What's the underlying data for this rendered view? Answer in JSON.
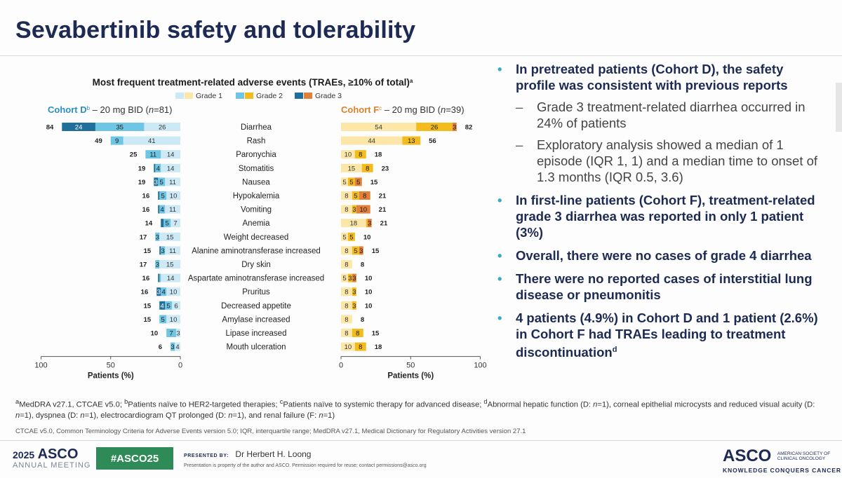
{
  "title": "Sevabertinib safety and tolerability",
  "chart_data": {
    "type": "bar",
    "title": "Most frequent treatment-related adverse events (TRAEs, ≥10% of total)",
    "title_sup": "a",
    "legend": [
      "Grade 1",
      "Grade 2",
      "Grade 3"
    ],
    "colors_left": {
      "grade1": "#cde9f5",
      "grade2": "#6ec6e4",
      "grade3": "#1e6f99"
    },
    "colors_right": {
      "grade1": "#fce7a9",
      "grade2": "#f3bb1c",
      "grade3": "#e2803a"
    },
    "legend_colors": {
      "grade1a": "#cde9f5",
      "grade1b": "#fce7a9",
      "grade2a": "#6ec6e4",
      "grade2b": "#f3bb1c",
      "grade3a": "#1e6f99",
      "grade3b": "#e2803a"
    },
    "cohortD": {
      "name": "Cohort D",
      "sup": "b",
      "dose": " – 20 mg BID (",
      "n": "n",
      "neq": "=81)",
      "color": "#2a8fbf"
    },
    "cohortF": {
      "name": "Cohort F",
      "sup": "c",
      "dose": " – 20 mg BID (",
      "n": "n",
      "neq": "=39)",
      "color": "#d9822b"
    },
    "categories": [
      "Diarrhea",
      "Rash",
      "Paronychia",
      "Stomatitis",
      "Nausea",
      "Hypokalemia",
      "Vomiting",
      "Anemia",
      "Weight decreased",
      "Alanine aminotransferase increased",
      "Dry skin",
      "Aspartate aminotransferase increased",
      "Pruritus",
      "Decreased appetite",
      "Amylase increased",
      "Lipase increased",
      "Mouth ulceration"
    ],
    "D": {
      "grade1": [
        26,
        41,
        14,
        14,
        11,
        10,
        11,
        7,
        15,
        11,
        15,
        14,
        10,
        6,
        10,
        3,
        4
      ],
      "grade2": [
        35,
        9,
        11,
        4,
        5,
        5,
        4,
        5,
        3,
        3,
        3,
        1,
        4,
        5,
        5,
        7,
        3
      ],
      "grade3": [
        24,
        0,
        0,
        1,
        3,
        1,
        1,
        2,
        0,
        1,
        0,
        1,
        3,
        4,
        0,
        0,
        0
      ],
      "grade1_labels": [
        "26",
        "41",
        "14",
        "14",
        "11",
        "10",
        "11",
        "7",
        "15",
        "11",
        "15",
        "14",
        "10",
        "6",
        "10",
        "3",
        "4"
      ],
      "grade2_labels": [
        "35",
        "9",
        "11",
        "4",
        "5",
        "5",
        "4",
        "5",
        "3",
        "3",
        "3",
        "",
        "4",
        "5",
        "5",
        "7",
        "3"
      ],
      "grade3_labels": [
        "24",
        "",
        "",
        "",
        "3",
        "",
        "",
        "",
        "",
        "",
        "",
        "",
        "3",
        "4",
        "",
        "",
        ""
      ],
      "totals": [
        "84",
        "49",
        "25",
        "19",
        "19",
        "16",
        "16",
        "14",
        "17",
        "15",
        "17",
        "16",
        "16",
        "15",
        "15",
        "10",
        "6"
      ]
    },
    "F": {
      "grade1": [
        54,
        44,
        10,
        15,
        5,
        8,
        8,
        18,
        5,
        8,
        8,
        5,
        8,
        8,
        8,
        8,
        10
      ],
      "grade2": [
        26,
        13,
        8,
        8,
        5,
        5,
        3,
        1,
        5,
        5,
        0,
        3,
        3,
        3,
        0,
        8,
        8
      ],
      "grade3": [
        3,
        0,
        0,
        0,
        5,
        8,
        10,
        3,
        0,
        3,
        0,
        3,
        0,
        0,
        0,
        0,
        0
      ],
      "grade1_labels": [
        "54",
        "44",
        "10",
        "15",
        "5",
        "8",
        "8",
        "18",
        "5",
        "8",
        "8",
        "5",
        "8",
        "8",
        "8",
        "8",
        "10"
      ],
      "grade2_labels": [
        "26",
        "13",
        "8",
        "8",
        "5",
        "5",
        "3",
        "",
        "5",
        "5",
        "",
        "3",
        "3",
        "3",
        "",
        "8",
        "8"
      ],
      "grade3_labels": [
        "3",
        "",
        "",
        "",
        "5",
        "8",
        "10",
        "3",
        "",
        "3",
        "",
        "3",
        "",
        "",
        "",
        "",
        ""
      ],
      "totals": [
        "82",
        "56",
        "18",
        "23",
        "15",
        "21",
        "21",
        "21",
        "10",
        "15",
        "8",
        "10",
        "10",
        "10",
        "8",
        "15",
        "18"
      ]
    },
    "xlabel": "Patients (%)",
    "xticks_left": [
      "100",
      "50",
      "0"
    ],
    "xticks_right": [
      "0",
      "50",
      "100"
    ],
    "xlim": [
      0,
      100
    ]
  },
  "bullets": [
    {
      "text": "In pretreated patients (Cohort D), the safety profile was consistent with previous reports",
      "subs": [
        "Grade 3 treatment-related diarrhea occurred in 24% of patients",
        "Exploratory analysis showed a median of 1 episode (IQR 1, 1) and a median time to onset of 1.3 months (IQR 0.5, 3.6)"
      ]
    },
    {
      "text": "In first-line patients (Cohort F), treatment-related grade 3 diarrhea was reported in only 1 patient (3%)",
      "subs": []
    },
    {
      "text": "Overall, there were no cases of grade 4 diarrhea",
      "subs": []
    },
    {
      "text": "There were no reported cases of interstitial lung disease or pneumonitis",
      "subs": []
    },
    {
      "text": "4 patients (4.9%) in Cohort D and 1 patient (2.6%) in Cohort F had TRAEs leading to treatment discontinuation",
      "sup": "d",
      "subs": []
    }
  ],
  "bullet_marker": "•",
  "sub_marker": "–",
  "footnotes": {
    "a_sup": "a",
    "a": "MedDRA v27.1, CTCAE v5.0; ",
    "b_sup": "b",
    "b": "Patients naïve to HER2-targeted therapies; ",
    "c_sup": "c",
    "c": "Patients naïve to systemic therapy for advanced disease; ",
    "d_sup": "d",
    "d1": "Abnormal hepatic function (D: ",
    "n": "n",
    "eq1": "=1), corneal epithelial microcysts and reduced visual acuity (D: ",
    "eq2": "=1), dyspnea (D: ",
    "eq3": "=1), electrocardiogram QT prolonged (D: ",
    "eq4": "=1), and renal failure (F: ",
    "eq5": "=1)"
  },
  "abbreviations": "CTCAE v5.0, Common Terminology Criteria for Adverse Events version 5.0; IQR, interquartile range; MedDRA v27.1, Medical Dictionary for Regulatory Activities version 27.1",
  "footer": {
    "year": "2025",
    "asco": "ASCO",
    "annual": "ANNUAL MEETING",
    "hashtag": "#ASCO25",
    "presented_label": "PRESENTED BY:",
    "presenter": "Dr Herbert H. Loong",
    "permission": "Presentation is property of the author and ASCO. Permission required for reuse; contact permissions@asco.org",
    "asco_right": "ASCO",
    "society": [
      "AMERICAN SOCIETY OF",
      "CLINICAL ONCOLOGY"
    ],
    "tagline": "KNOWLEDGE CONQUERS CANCER"
  }
}
